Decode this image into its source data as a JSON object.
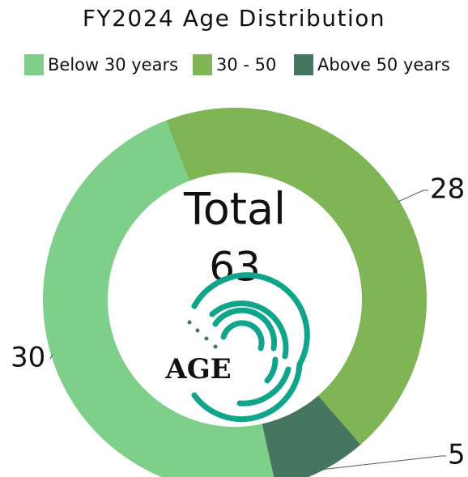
{
  "chart_data": {
    "type": "donut",
    "title": "FY2024 Age Distribution",
    "categories": [
      "Below 30 years",
      "30 - 50",
      "Above 50 years"
    ],
    "values": [
      30,
      28,
      5
    ],
    "colors": [
      "#7dcf8a",
      "#80b556",
      "#467560"
    ],
    "center_label": "Total",
    "total": 63,
    "logo_text": "AGE",
    "legend": "top"
  }
}
